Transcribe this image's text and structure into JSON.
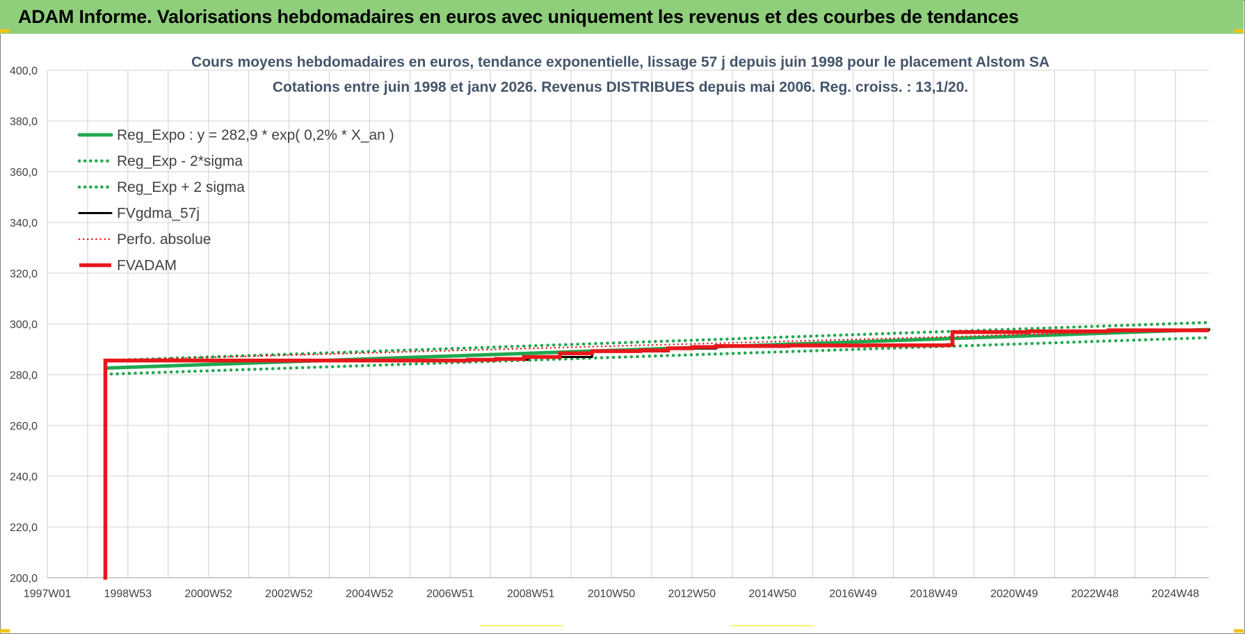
{
  "banner": {
    "title": "ADAM Informe. Valorisations hebdomadaires en euros avec uniquement les revenus et des courbes de tendances"
  },
  "colors": {
    "banner_bg": "#8fcf7c",
    "reg_expo": "#1fa84f",
    "sigma": "#1fa84f",
    "fvgdma": "#000000",
    "perfo": "#e41a1a",
    "fvadam": "#e8171b",
    "grid": "#d9d9d9",
    "title": "#44546a"
  },
  "chart_data": {
    "type": "line",
    "title": "Cours moyens hebdomadaires en euros, tendance exponentielle, lissage 57 j depuis juin 1998 pour le placement Alstom SA",
    "subtitle": "Cotations entre juin 1998 et janv 2026.  Revenus DISTRIBUES depuis mai 2006. Reg. croiss. : 13,1/20.",
    "xlabel": "",
    "ylabel": "",
    "ylim": [
      200,
      400
    ],
    "xlim": [
      1997.0,
      2026.0
    ],
    "y_ticks": [
      "400,0",
      "380,0",
      "360,0",
      "340,0",
      "320,0",
      "300,0",
      "280,0",
      "260,0",
      "240,0",
      "220,0",
      "200,0"
    ],
    "x_ticks": [
      "1997W01",
      "1998W53",
      "2000W52",
      "2002W52",
      "2004W52",
      "2006W51",
      "2008W51",
      "2010W50",
      "2012W50",
      "2014W50",
      "2016W49",
      "2018W49",
      "2020W49",
      "2022W48",
      "2024W48"
    ],
    "grid": true,
    "legend_position": "top-left",
    "series": [
      {
        "name": "Reg_Expo : y = 282,9 * exp( 0,2% *  X_an )",
        "style": "solid",
        "x": [
          1998.45,
          2026.0
        ],
        "values": [
          282.6,
          297.8
        ]
      },
      {
        "name": "Reg_Exp - 2*sigma",
        "style": "dotted",
        "x": [
          1998.45,
          2026.0
        ],
        "values": [
          280.2,
          294.6
        ]
      },
      {
        "name": "Reg_Exp + 2 sigma",
        "style": "dotted",
        "x": [
          1998.45,
          2026.0
        ],
        "values": [
          285.6,
          300.6
        ]
      },
      {
        "name": "FVgdma_57j",
        "style": "solid",
        "x": [
          1998.45,
          2007.5,
          2009.0,
          2010.6,
          2012.5,
          2013.7,
          2015.5,
          2017.5,
          2019.35,
          2019.6,
          2021.5,
          2023.5,
          2026.0
        ],
        "values": [
          285.5,
          285.9,
          287.0,
          289.2,
          290.3,
          291.4,
          291.6,
          291.7,
          291.8,
          296.8,
          297.2,
          297.6,
          297.7
        ]
      },
      {
        "name": "Perfo. absolue",
        "style": "dotted",
        "x": [
          1998.45,
          2026.0
        ],
        "values": [
          285.7,
          297.8
        ]
      },
      {
        "name": "FVADAM",
        "style": "solid",
        "x": [
          1998.4,
          1998.45,
          2003.0,
          2007.5,
          2008.2,
          2008.9,
          2009.8,
          2010.6,
          2011.8,
          2012.5,
          2013.1,
          2013.7,
          2015.5,
          2017.5,
          2019.5,
          2019.6,
          2021.5,
          2023.5,
          2026.0
        ],
        "values": [
          200.0,
          285.6,
          285.6,
          285.9,
          286.2,
          287.0,
          288.4,
          289.3,
          289.6,
          290.4,
          290.9,
          291.3,
          291.5,
          291.6,
          291.7,
          296.8,
          297.1,
          297.5,
          297.5
        ]
      }
    ]
  }
}
